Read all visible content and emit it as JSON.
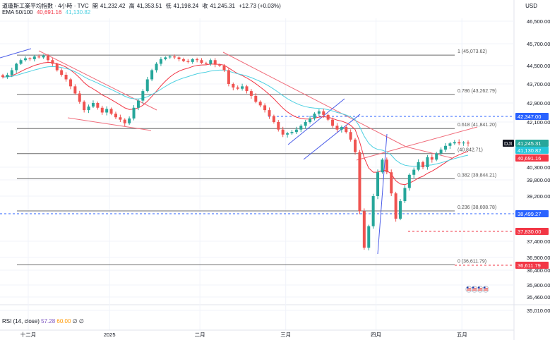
{
  "header": {
    "symbol": "道瓊斯工業平均指數 · 4小時 · TVC",
    "open_label": "開",
    "open": "41,232.42",
    "high_label": "高",
    "high": "41,353.51",
    "low_label": "低",
    "low": "41,198.24",
    "close_label": "收",
    "close": "41,245.31",
    "change": "+12.73 (+0.03%)",
    "ema_label": "EMA 50/100",
    "ema50": "40,691.16",
    "ema100": "41,130.82"
  },
  "currency": "USD",
  "rsi": {
    "label": "RSI (14, close)",
    "value1": "57.28",
    "value2": "60.00",
    "sym1": "∅",
    "sym2": "∅"
  },
  "colors": {
    "up": "#26a69a",
    "down": "#ef5350",
    "ema50": "#f23645",
    "ema100": "#4dd0e1",
    "trend": "#f06c7a",
    "channel": "#4a5ce8",
    "fib": "#555555"
  },
  "chart_data": {
    "type": "candlestick",
    "ylim": [
      34800,
      46800
    ],
    "y_ticks": [
      "46,500.00",
      "45,700.00",
      "44,500.00",
      "43,700.00",
      "42,900.00",
      "42,100.00",
      "40,300.00",
      "39,800.00",
      "39,200.00",
      "37,400.00",
      "36,900.00",
      "36,400.00",
      "35,900.00",
      "35,460.00",
      "35,010.00"
    ],
    "y_tick_values": [
      46500,
      45700,
      44500,
      43700,
      42900,
      42100,
      40300,
      39800,
      39200,
      37400,
      36900,
      36400,
      35900,
      35460,
      35010
    ],
    "x_labels": [
      "十二月",
      "2025",
      "二月",
      "三月",
      "四月",
      "五月"
    ],
    "x_label_index": [
      0,
      18,
      38,
      57,
      77,
      96
    ],
    "n_bars": 104,
    "fib_levels": [
      {
        "label": "1 (45,073.62)",
        "value": 45073.62
      },
      {
        "label": "0.786 (43,262.79)",
        "value": 43262.79
      },
      {
        "label": "0.618 (41,841.20)",
        "value": 41841.2
      },
      {
        "label": "(40,842.71)",
        "value": 40842.71
      },
      {
        "label": "0.382 (39,844.21)",
        "value": 39844.21
      },
      {
        "label": "0.236 (38,608.78)",
        "value": 38608.78
      },
      {
        "label": "0 (36,611.79)",
        "value": 36611.79
      }
    ],
    "price_badges": [
      {
        "text": "42,347.00",
        "value": 42347.0,
        "color": "#2962ff"
      },
      {
        "text": "41,245.31",
        "value": 41245.31,
        "color": "#26a69a",
        "tag": "DJI"
      },
      {
        "text": "41,130.82",
        "value": 41130.82,
        "color": "#26c6da"
      },
      {
        "text": "40,691.16",
        "value": 40691.16,
        "color": "#f23645"
      },
      {
        "text": "38,499.27",
        "value": 38499.27,
        "color": "#2962ff"
      },
      {
        "text": "37,830.00",
        "value": 37830.0,
        "color": "#f23645"
      },
      {
        "text": "36,611.79",
        "value": 36611.79,
        "color": "#f23645"
      }
    ],
    "closes": [
      44000,
      44100,
      44300,
      44600,
      44800,
      44900,
      44850,
      45000,
      44950,
      45050,
      44800,
      44600,
      44300,
      44100,
      43900,
      43600,
      43300,
      42950,
      42600,
      42750,
      42900,
      42700,
      42500,
      42650,
      42450,
      42300,
      42200,
      42050,
      42250,
      42700,
      43000,
      43400,
      43900,
      44300,
      44600,
      44850,
      44950,
      45000,
      44950,
      44850,
      44750,
      44700,
      44850,
      44800,
      44650,
      44600,
      44800,
      44550,
      44500,
      44300,
      43700,
      43550,
      43500,
      43600,
      43400,
      43200,
      42950,
      42800,
      42600,
      42350,
      42100,
      41800,
      41600,
      41650,
      41700,
      41800,
      41950,
      42100,
      42250,
      42450,
      42550,
      42400,
      42200,
      41950,
      41800,
      41900,
      41700,
      41400,
      40900,
      38600,
      37200,
      38000,
      39200,
      40100,
      40600,
      40100,
      39300,
      38300,
      39000,
      39500,
      40000,
      40200,
      40500,
      40300,
      40700,
      40600,
      40850,
      41000,
      41150,
      41250,
      41300,
      41250,
      41280,
      41245.31
    ]
  }
}
